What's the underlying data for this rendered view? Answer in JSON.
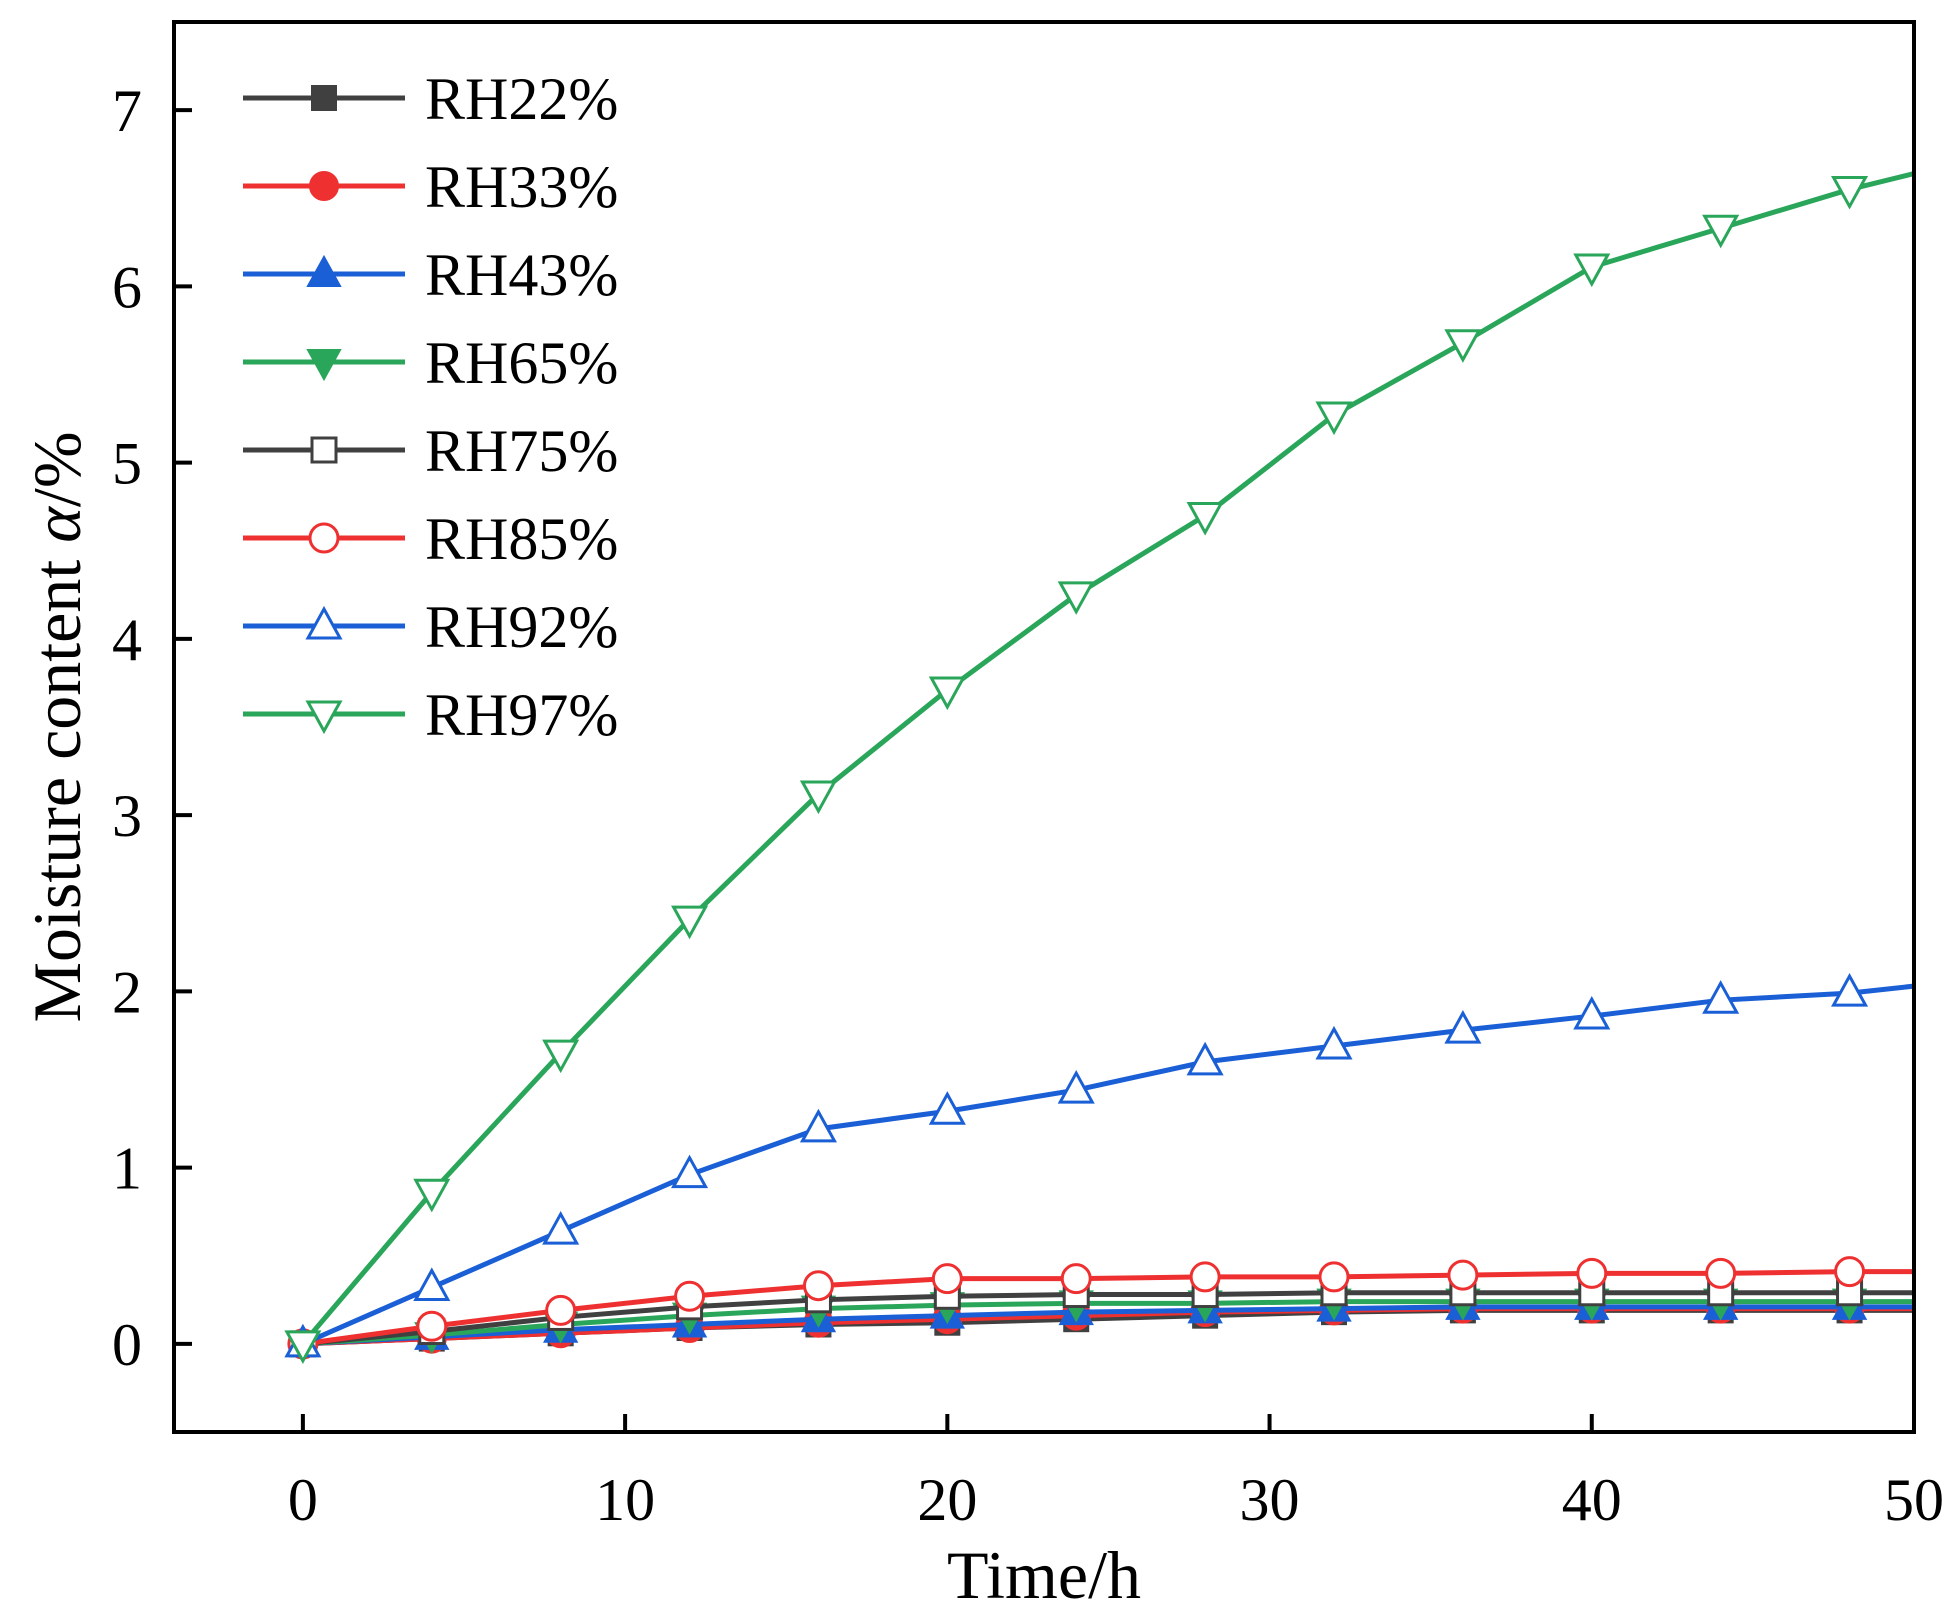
{
  "chart_data": {
    "type": "line",
    "title": "",
    "xlabel": "Time/h",
    "ylabel_prefix": "Moisture content ",
    "ylabel_symbol": "α",
    "ylabel_suffix": "/%",
    "xlim": [
      -4,
      50
    ],
    "ylim": [
      -0.5,
      7.5
    ],
    "xticks": [
      0,
      10,
      20,
      30,
      40,
      50
    ],
    "yticks": [
      0,
      1,
      2,
      3,
      4,
      5,
      6,
      7
    ],
    "grid": false,
    "legend_position": "top-left",
    "x": [
      0,
      4,
      8,
      12,
      16,
      20,
      24,
      28,
      32,
      36,
      40,
      44,
      48,
      50
    ],
    "series": [
      {
        "name": "RH22%",
        "color": "#404040",
        "marker": "square-filled",
        "values": [
          0,
          0.03,
          0.06,
          0.09,
          0.11,
          0.12,
          0.14,
          0.16,
          0.18,
          0.19,
          0.19,
          0.19,
          0.19,
          0.19
        ]
      },
      {
        "name": "RH33%",
        "color": "#ee3030",
        "marker": "circle-filled",
        "values": [
          0,
          0.03,
          0.06,
          0.09,
          0.12,
          0.14,
          0.16,
          0.18,
          0.19,
          0.2,
          0.2,
          0.2,
          0.2,
          0.2
        ]
      },
      {
        "name": "RH43%",
        "color": "#1a5fd6",
        "marker": "triangle-up-filled",
        "values": [
          0,
          0.04,
          0.08,
          0.11,
          0.14,
          0.16,
          0.18,
          0.19,
          0.2,
          0.21,
          0.21,
          0.21,
          0.21,
          0.21
        ]
      },
      {
        "name": "RH65%",
        "color": "#2aa65a",
        "marker": "triangle-down-filled",
        "values": [
          0,
          0.05,
          0.11,
          0.16,
          0.2,
          0.22,
          0.23,
          0.23,
          0.24,
          0.24,
          0.24,
          0.24,
          0.24,
          0.24
        ]
      },
      {
        "name": "RH75%",
        "color": "#404040",
        "marker": "square-open",
        "values": [
          0,
          0.07,
          0.15,
          0.21,
          0.25,
          0.27,
          0.28,
          0.28,
          0.29,
          0.29,
          0.29,
          0.29,
          0.29,
          0.29
        ]
      },
      {
        "name": "RH85%",
        "color": "#ee3030",
        "marker": "circle-open",
        "values": [
          0,
          0.1,
          0.19,
          0.27,
          0.33,
          0.37,
          0.37,
          0.38,
          0.38,
          0.39,
          0.4,
          0.4,
          0.41,
          0.41
        ]
      },
      {
        "name": "RH92%",
        "color": "#1a5fd6",
        "marker": "triangle-up-open",
        "values": [
          0,
          0.32,
          0.64,
          0.96,
          1.22,
          1.32,
          1.44,
          1.6,
          1.69,
          1.78,
          1.86,
          1.95,
          1.99,
          2.03
        ]
      },
      {
        "name": "RH97%",
        "color": "#2aa65a",
        "marker": "triangle-down-open",
        "values": [
          0,
          0.86,
          1.65,
          2.41,
          3.12,
          3.71,
          4.25,
          4.7,
          5.27,
          5.68,
          6.11,
          6.33,
          6.55,
          6.64
        ]
      }
    ]
  }
}
